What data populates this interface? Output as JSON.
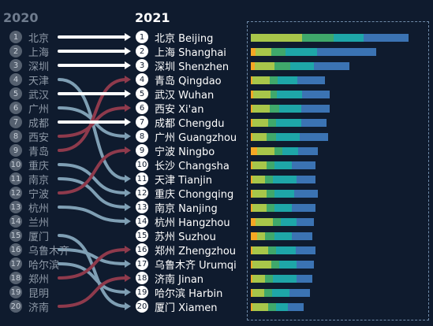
{
  "chart_data": {
    "type": "bump",
    "years": [
      "2020",
      "2021"
    ],
    "left": [
      {
        "rank": 1,
        "name": "北京"
      },
      {
        "rank": 2,
        "name": "上海"
      },
      {
        "rank": 3,
        "name": "深圳"
      },
      {
        "rank": 4,
        "name": "天津"
      },
      {
        "rank": 5,
        "name": "武汉"
      },
      {
        "rank": 6,
        "name": "广州"
      },
      {
        "rank": 7,
        "name": "成都"
      },
      {
        "rank": 8,
        "name": "西安"
      },
      {
        "rank": 9,
        "name": "青岛"
      },
      {
        "rank": 10,
        "name": "重庆"
      },
      {
        "rank": 11,
        "name": "南京"
      },
      {
        "rank": 12,
        "name": "宁波"
      },
      {
        "rank": 13,
        "name": "杭州"
      },
      {
        "rank": 14,
        "name": "兰州"
      },
      {
        "rank": 15,
        "name": "厦门"
      },
      {
        "rank": 16,
        "name": "乌鲁木齐"
      },
      {
        "rank": 17,
        "name": "哈尔滨"
      },
      {
        "rank": 18,
        "name": "郑州"
      },
      {
        "rank": 19,
        "name": "昆明"
      },
      {
        "rank": 20,
        "name": "济南"
      }
    ],
    "right": [
      {
        "rank": 1,
        "name": "北京 Beijing"
      },
      {
        "rank": 2,
        "name": "上海 Shanghai"
      },
      {
        "rank": 3,
        "name": "深圳 Shenzhen"
      },
      {
        "rank": 4,
        "name": "青岛 Qingdao"
      },
      {
        "rank": 5,
        "name": "武汉 Wuhan"
      },
      {
        "rank": 6,
        "name": "西安 Xi'an"
      },
      {
        "rank": 7,
        "name": "成都 Chengdu"
      },
      {
        "rank": 8,
        "name": "广州 Guangzhou"
      },
      {
        "rank": 9,
        "name": "宁波 Ningbo"
      },
      {
        "rank": 10,
        "name": "长沙 Changsha"
      },
      {
        "rank": 11,
        "name": "天津 Tianjin"
      },
      {
        "rank": 12,
        "name": "重庆 Chongqing"
      },
      {
        "rank": 13,
        "name": "南京 Nanjing"
      },
      {
        "rank": 14,
        "name": "杭州 Hangzhou"
      },
      {
        "rank": 15,
        "name": "苏州 Suzhou"
      },
      {
        "rank": 16,
        "name": "郑州 Zhengzhou"
      },
      {
        "rank": 17,
        "name": "乌鲁木齐 Urumqi"
      },
      {
        "rank": 18,
        "name": "济南 Jinan"
      },
      {
        "rank": 19,
        "name": "哈尔滨 Harbin"
      },
      {
        "rank": 20,
        "name": "厦门 Xiamen"
      }
    ],
    "flows": [
      {
        "from": 1,
        "to": 1,
        "trend": "same"
      },
      {
        "from": 2,
        "to": 2,
        "trend": "same"
      },
      {
        "from": 3,
        "to": 3,
        "trend": "same"
      },
      {
        "from": 4,
        "to": 11,
        "trend": "down"
      },
      {
        "from": 5,
        "to": 5,
        "trend": "same"
      },
      {
        "from": 6,
        "to": 8,
        "trend": "down"
      },
      {
        "from": 7,
        "to": 7,
        "trend": "same"
      },
      {
        "from": 8,
        "to": 6,
        "trend": "up"
      },
      {
        "from": 9,
        "to": 4,
        "trend": "up"
      },
      {
        "from": 10,
        "to": 12,
        "trend": "down"
      },
      {
        "from": 11,
        "to": 13,
        "trend": "down"
      },
      {
        "from": 12,
        "to": 9,
        "trend": "up"
      },
      {
        "from": 13,
        "to": 14,
        "trend": "down"
      },
      {
        "from": 15,
        "to": 20,
        "trend": "down"
      },
      {
        "from": 16,
        "to": 17,
        "trend": "down"
      },
      {
        "from": 17,
        "to": 19,
        "trend": "down"
      },
      {
        "from": 18,
        "to": 16,
        "trend": "up"
      },
      {
        "from": 20,
        "to": 18,
        "trend": "up"
      }
    ],
    "bar_segment_colors": [
      "#f4a724",
      "#a8c64a",
      "#3fa86b",
      "#1ea6a8",
      "#3b73b3"
    ],
    "bar_segments": [
      [
        0,
        65,
        40,
        38,
        57
      ],
      [
        6,
        20,
        18,
        40,
        75
      ],
      [
        5,
        25,
        20,
        30,
        45
      ],
      [
        2,
        22,
        10,
        25,
        35
      ],
      [
        3,
        22,
        8,
        32,
        35
      ],
      [
        2,
        22,
        12,
        28,
        36
      ],
      [
        2,
        20,
        10,
        32,
        32
      ],
      [
        2,
        18,
        12,
        30,
        36
      ],
      [
        8,
        22,
        10,
        20,
        25
      ],
      [
        2,
        18,
        10,
        22,
        30
      ],
      [
        2,
        16,
        10,
        30,
        24
      ],
      [
        2,
        18,
        10,
        25,
        30
      ],
      [
        2,
        18,
        10,
        22,
        30
      ],
      [
        6,
        22,
        10,
        20,
        22
      ],
      [
        8,
        10,
        12,
        22,
        26
      ],
      [
        2,
        20,
        10,
        25,
        25
      ],
      [
        2,
        24,
        10,
        22,
        22
      ],
      [
        2,
        16,
        10,
        30,
        20
      ],
      [
        2,
        15,
        10,
        22,
        26
      ],
      [
        2,
        20,
        10,
        15,
        20
      ]
    ]
  },
  "colors": {
    "background": "#0f1b2e",
    "flow_same": "#ffffff",
    "flow_down": "#7f9fb4",
    "flow_up": "#8e3a4c",
    "box_border": "#6f8aa8"
  }
}
